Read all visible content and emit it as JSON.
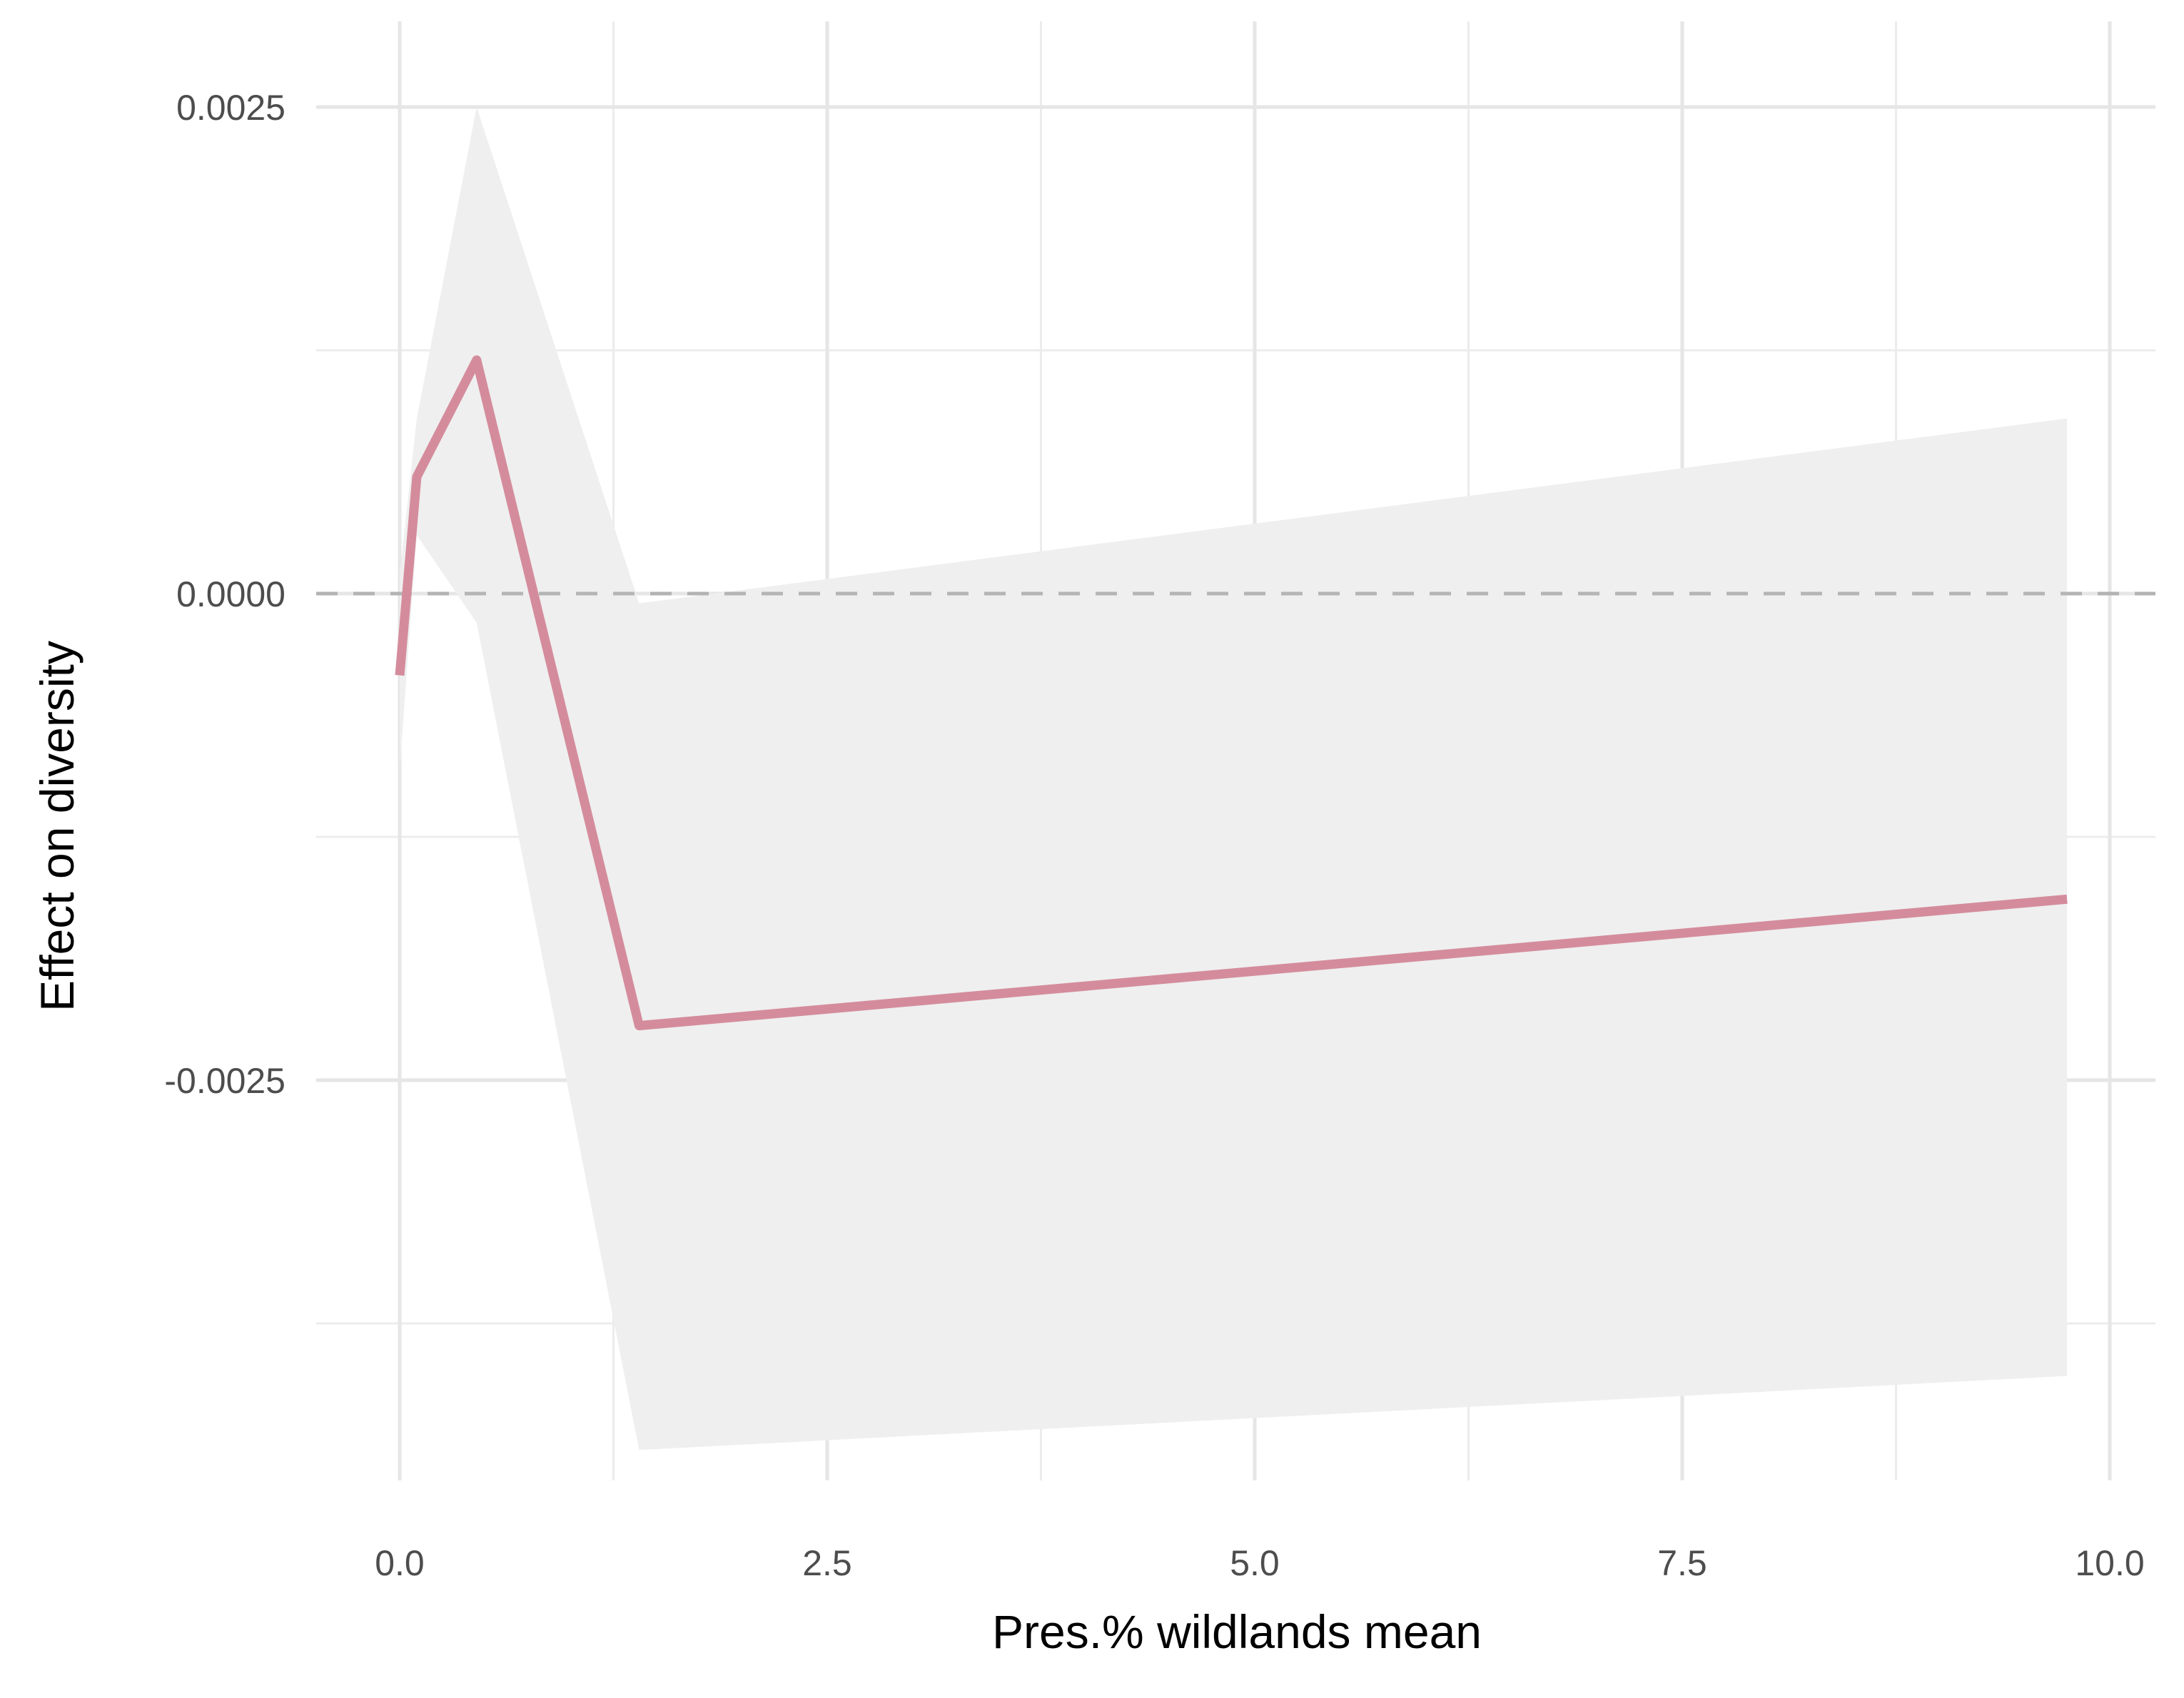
{
  "chart_data": {
    "type": "line",
    "title": "",
    "xlabel": "Pres.% wildlands mean",
    "ylabel": "Effect on diversity",
    "xlim": [
      -0.45,
      10.2
    ],
    "ylim": [
      -0.0047,
      0.0027
    ],
    "x_ticks": [
      {
        "value": 0.0,
        "label": "0.0"
      },
      {
        "value": 2.5,
        "label": "2.5"
      },
      {
        "value": 5.0,
        "label": "5.0"
      },
      {
        "value": 7.5,
        "label": "7.5"
      },
      {
        "value": 10.0,
        "label": "10.0"
      }
    ],
    "y_ticks": [
      {
        "value": 0.0025,
        "label": "0.0025"
      },
      {
        "value": 0.0,
        "label": "0.0000"
      },
      {
        "value": -0.0025,
        "label": "-0.0025"
      }
    ],
    "x_minor_grid": [
      1.25,
      3.75,
      6.25,
      8.75
    ],
    "y_minor_grid": [
      0.00125,
      -0.00125,
      -0.00375
    ],
    "grid": true,
    "reference_line": {
      "y": 0.0,
      "style": "dashed",
      "color": "#a6a6a6"
    },
    "series": [
      {
        "x": [
          0.0,
          0.1,
          0.45,
          1.4,
          9.75
        ],
        "y": [
          -0.00042,
          0.0006,
          0.0012,
          -0.00222,
          -0.00157
        ],
        "lower": [
          -0.0009,
          0.0003,
          -0.00015,
          -0.0044,
          -0.00402
        ],
        "upper": [
          0.0001,
          0.0009,
          0.0025,
          -5e-05,
          0.0009
        ],
        "color": "#d48c9c",
        "band_color": "#efefef"
      }
    ]
  }
}
